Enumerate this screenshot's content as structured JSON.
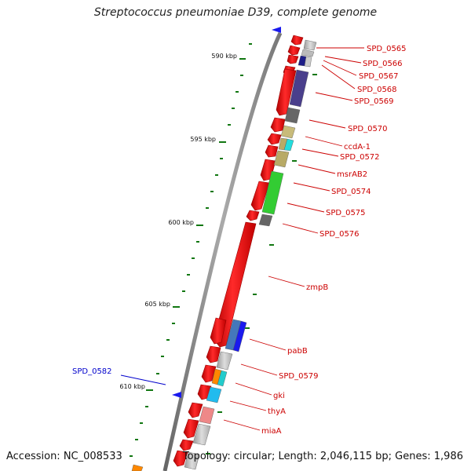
{
  "title": "Streptococcus pneumoniae D39, complete genome",
  "footer": {
    "accession": "Accession: NC_008533",
    "summary": "Topology: circular; Length: 2,046,115 bp; Genes: 1,986"
  },
  "ticks": [
    "590 kbp",
    "595 kbp",
    "600 kbp",
    "605 kbp",
    "610 kbp"
  ],
  "gene_labels_right": [
    "SPD_0565",
    "SPD_0566",
    "SPD_0567",
    "SPD_0568",
    "SPD_0569",
    "SPD_0570",
    "ccdA-1",
    "SPD_0572",
    "msrAB2",
    "SPD_0574",
    "SPD_0575",
    "SPD_0576",
    "zmpB",
    "pabB",
    "SPD_0579",
    "gki",
    "thyA",
    "miaA"
  ],
  "gene_labels_left": [
    "SPD_0582"
  ],
  "colors": {
    "forward_gene": "#ee1111",
    "reverse_gene": "#1a1aee",
    "label_right": "#cc0000",
    "label_left": "#0000cc",
    "backbone": "#888888",
    "tick": "#117711"
  }
}
